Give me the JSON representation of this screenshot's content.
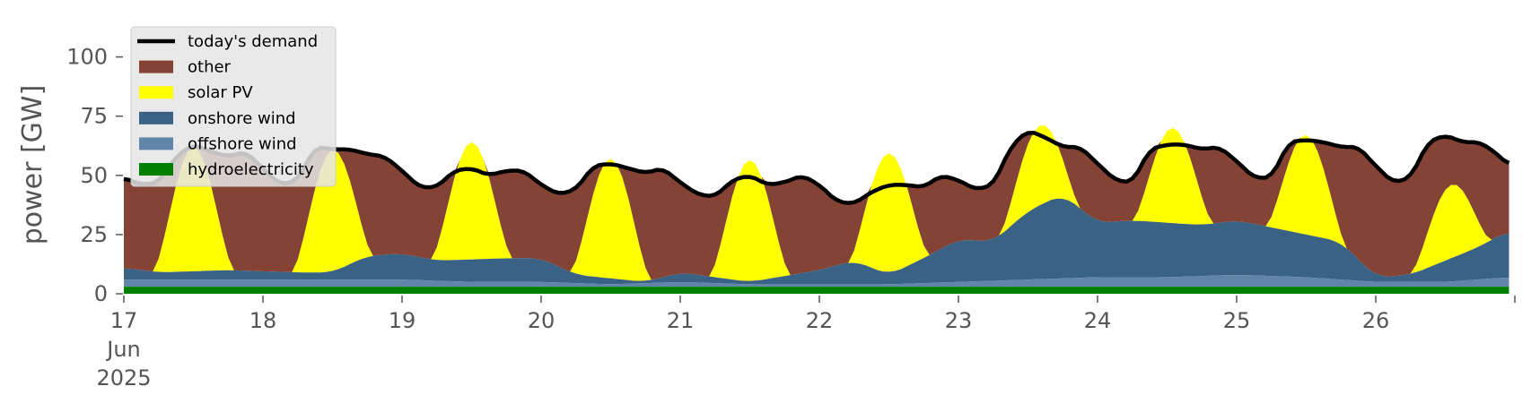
{
  "chart_data": {
    "type": "area",
    "ylabel": "power [GW]",
    "xlabel": "",
    "ylim": [
      0,
      118
    ],
    "xlim": [
      "2025-06-17",
      "2025-06-27"
    ],
    "yticks": [
      0,
      25,
      50,
      75,
      100
    ],
    "ytick_labels": [
      "0",
      "25",
      "50",
      "75",
      "100"
    ],
    "xticks": [
      "2025-06-17",
      "2025-06-18",
      "2025-06-19",
      "2025-06-20",
      "2025-06-21",
      "2025-06-22",
      "2025-06-23",
      "2025-06-24",
      "2025-06-25",
      "2025-06-26"
    ],
    "xtick_labels": [
      "17",
      "18",
      "19",
      "20",
      "21",
      "22",
      "23",
      "24",
      "25",
      "26"
    ],
    "xtick_sublabel": [
      "Jun",
      "2025"
    ],
    "legend_position": "upper-left",
    "grid": false,
    "stacked": true,
    "series": [
      {
        "name": "hydroelectricity",
        "color": "#008000"
      },
      {
        "name": "offshore wind",
        "color": "#6185a8"
      },
      {
        "name": "onshore wind",
        "color": "#3a6285"
      },
      {
        "name": "solar PV",
        "color": "#ffff00"
      },
      {
        "name": "other",
        "color": "#844334"
      },
      {
        "name": "today's demand",
        "color": "#000000",
        "type": "line"
      }
    ],
    "legend": [
      {
        "name": "today's demand",
        "color": "#000000",
        "kind": "line"
      },
      {
        "name": "other",
        "color": "#844334",
        "kind": "patch"
      },
      {
        "name": "solar PV",
        "color": "#ffff00",
        "kind": "patch"
      },
      {
        "name": "onshore wind",
        "color": "#3a6285",
        "kind": "patch"
      },
      {
        "name": "offshore wind",
        "color": "#6185a8",
        "kind": "patch"
      },
      {
        "name": "hydroelectricity",
        "color": "#008000",
        "kind": "patch"
      }
    ],
    "demand": [
      [
        "2025-06-17T00:00",
        49
      ],
      [
        "2025-06-17T03:00",
        46
      ],
      [
        "2025-06-17T06:00",
        47
      ],
      [
        "2025-06-17T09:00",
        58
      ],
      [
        "2025-06-17T12:00",
        63
      ],
      [
        "2025-06-17T15:00",
        60
      ],
      [
        "2025-06-17T18:00",
        58
      ],
      [
        "2025-06-17T21:00",
        60
      ],
      [
        "2025-06-18T00:00",
        53
      ],
      [
        "2025-06-18T03:00",
        46
      ],
      [
        "2025-06-18T06:00",
        48
      ],
      [
        "2025-06-18T09:00",
        62
      ],
      [
        "2025-06-18T12:00",
        61
      ],
      [
        "2025-06-18T15:00",
        61
      ],
      [
        "2025-06-18T18:00",
        59
      ],
      [
        "2025-06-18T21:00",
        58
      ],
      [
        "2025-06-19T00:00",
        52
      ],
      [
        "2025-06-19T03:00",
        45
      ],
      [
        "2025-06-19T06:00",
        45
      ],
      [
        "2025-06-19T09:00",
        52
      ],
      [
        "2025-06-19T12:00",
        53
      ],
      [
        "2025-06-19T15:00",
        50
      ],
      [
        "2025-06-19T18:00",
        52
      ],
      [
        "2025-06-19T21:00",
        52
      ],
      [
        "2025-06-20T00:00",
        46
      ],
      [
        "2025-06-20T03:00",
        42
      ],
      [
        "2025-06-20T06:00",
        44
      ],
      [
        "2025-06-20T09:00",
        54
      ],
      [
        "2025-06-20T12:00",
        55
      ],
      [
        "2025-06-20T15:00",
        53
      ],
      [
        "2025-06-20T18:00",
        51
      ],
      [
        "2025-06-20T21:00",
        53
      ],
      [
        "2025-06-21T00:00",
        47
      ],
      [
        "2025-06-21T03:00",
        42
      ],
      [
        "2025-06-21T06:00",
        41
      ],
      [
        "2025-06-21T09:00",
        48
      ],
      [
        "2025-06-21T12:00",
        50
      ],
      [
        "2025-06-21T15:00",
        46
      ],
      [
        "2025-06-21T18:00",
        47
      ],
      [
        "2025-06-21T21:00",
        50
      ],
      [
        "2025-06-22T00:00",
        46
      ],
      [
        "2025-06-22T03:00",
        39
      ],
      [
        "2025-06-22T06:00",
        38
      ],
      [
        "2025-06-22T09:00",
        43
      ],
      [
        "2025-06-22T12:00",
        46
      ],
      [
        "2025-06-22T15:00",
        46
      ],
      [
        "2025-06-22T18:00",
        45
      ],
      [
        "2025-06-22T21:00",
        50
      ],
      [
        "2025-06-23T00:00",
        48
      ],
      [
        "2025-06-23T03:00",
        44
      ],
      [
        "2025-06-23T06:00",
        46
      ],
      [
        "2025-06-23T09:00",
        62
      ],
      [
        "2025-06-23T12:00",
        69
      ],
      [
        "2025-06-23T15:00",
        66
      ],
      [
        "2025-06-23T18:00",
        62
      ],
      [
        "2025-06-23T21:00",
        62
      ],
      [
        "2025-06-24T00:00",
        55
      ],
      [
        "2025-06-24T03:00",
        48
      ],
      [
        "2025-06-24T06:00",
        47
      ],
      [
        "2025-06-24T09:00",
        61
      ],
      [
        "2025-06-24T12:00",
        63
      ],
      [
        "2025-06-24T15:00",
        63
      ],
      [
        "2025-06-24T18:00",
        61
      ],
      [
        "2025-06-24T21:00",
        62
      ],
      [
        "2025-06-25T00:00",
        56
      ],
      [
        "2025-06-25T03:00",
        49
      ],
      [
        "2025-06-25T06:00",
        49
      ],
      [
        "2025-06-25T09:00",
        64
      ],
      [
        "2025-06-25T12:00",
        65
      ],
      [
        "2025-06-25T15:00",
        64
      ],
      [
        "2025-06-25T18:00",
        62
      ],
      [
        "2025-06-25T21:00",
        62
      ],
      [
        "2025-06-26T00:00",
        54
      ],
      [
        "2025-06-26T03:00",
        47
      ],
      [
        "2025-06-26T06:00",
        49
      ],
      [
        "2025-06-26T09:00",
        64
      ],
      [
        "2025-06-26T12:00",
        67
      ],
      [
        "2025-06-26T15:00",
        64
      ],
      [
        "2025-06-26T18:00",
        64
      ],
      [
        "2025-06-26T21:00",
        59
      ],
      [
        "2025-06-26T23:00",
        54
      ]
    ],
    "solar_peak_total": [
      [
        "2025-06-17T12:00",
        62
      ],
      [
        "2025-06-18T12:00",
        60
      ],
      [
        "2025-06-19T12:00",
        64
      ],
      [
        "2025-06-20T12:00",
        57
      ],
      [
        "2025-06-21T12:00",
        56
      ],
      [
        "2025-06-22T12:00",
        58
      ],
      [
        "2025-06-23T14:00",
        71
      ],
      [
        "2025-06-24T13:00",
        70
      ],
      [
        "2025-06-25T12:00",
        67
      ],
      [
        "2025-06-26T13:00",
        46
      ]
    ],
    "stack_totals": {
      "hydroelectricity": [
        [
          "2025-06-17T00:00",
          3
        ],
        [
          "2025-06-18T00:00",
          3
        ],
        [
          "2025-06-19T00:00",
          3
        ],
        [
          "2025-06-20T00:00",
          3
        ],
        [
          "2025-06-21T00:00",
          3
        ],
        [
          "2025-06-22T00:00",
          3
        ],
        [
          "2025-06-23T00:00",
          3
        ],
        [
          "2025-06-24T00:00",
          3
        ],
        [
          "2025-06-25T00:00",
          3
        ],
        [
          "2025-06-26T00:00",
          3
        ],
        [
          "2025-06-26T23:00",
          3
        ]
      ],
      "offshore wind": [
        [
          "2025-06-17T00:00",
          6
        ],
        [
          "2025-06-17T12:00",
          6
        ],
        [
          "2025-06-18T00:00",
          6
        ],
        [
          "2025-06-18T12:00",
          6
        ],
        [
          "2025-06-19T00:00",
          6
        ],
        [
          "2025-06-19T12:00",
          5
        ],
        [
          "2025-06-20T00:00",
          5
        ],
        [
          "2025-06-20T12:00",
          4
        ],
        [
          "2025-06-21T00:00",
          5
        ],
        [
          "2025-06-21T12:00",
          4
        ],
        [
          "2025-06-22T00:00",
          4
        ],
        [
          "2025-06-22T12:00",
          4
        ],
        [
          "2025-06-23T00:00",
          5
        ],
        [
          "2025-06-23T12:00",
          6
        ],
        [
          "2025-06-24T00:00",
          7
        ],
        [
          "2025-06-24T12:00",
          7
        ],
        [
          "2025-06-25T00:00",
          8
        ],
        [
          "2025-06-25T12:00",
          7
        ],
        [
          "2025-06-26T00:00",
          5
        ],
        [
          "2025-06-26T12:00",
          5
        ],
        [
          "2025-06-26T23:00",
          7
        ]
      ],
      "onshore wind": [
        [
          "2025-06-17T00:00",
          11
        ],
        [
          "2025-06-17T06:00",
          9
        ],
        [
          "2025-06-17T18:00",
          10
        ],
        [
          "2025-06-18T06:00",
          9
        ],
        [
          "2025-06-18T12:00",
          9
        ],
        [
          "2025-06-18T18:00",
          16
        ],
        [
          "2025-06-19T00:00",
          17
        ],
        [
          "2025-06-19T06:00",
          14
        ],
        [
          "2025-06-19T18:00",
          15
        ],
        [
          "2025-06-20T00:00",
          15
        ],
        [
          "2025-06-20T06:00",
          8
        ],
        [
          "2025-06-20T18:00",
          5
        ],
        [
          "2025-06-21T00:00",
          9
        ],
        [
          "2025-06-21T12:00",
          5
        ],
        [
          "2025-06-22T00:00",
          10
        ],
        [
          "2025-06-22T06:00",
          14
        ],
        [
          "2025-06-22T12:00",
          8
        ],
        [
          "2025-06-22T18:00",
          15
        ],
        [
          "2025-06-23T00:00",
          23
        ],
        [
          "2025-06-23T06:00",
          22
        ],
        [
          "2025-06-23T12:00",
          35
        ],
        [
          "2025-06-23T18:00",
          42
        ],
        [
          "2025-06-24T00:00",
          30
        ],
        [
          "2025-06-24T06:00",
          31
        ],
        [
          "2025-06-24T12:00",
          30
        ],
        [
          "2025-06-24T18:00",
          29
        ],
        [
          "2025-06-25T00:00",
          31
        ],
        [
          "2025-06-25T12:00",
          25
        ],
        [
          "2025-06-25T18:00",
          22
        ],
        [
          "2025-06-26T00:00",
          7
        ],
        [
          "2025-06-26T06:00",
          8
        ],
        [
          "2025-06-26T12:00",
          14
        ],
        [
          "2025-06-26T18:00",
          20
        ],
        [
          "2025-06-26T23:00",
          27
        ]
      ]
    }
  }
}
